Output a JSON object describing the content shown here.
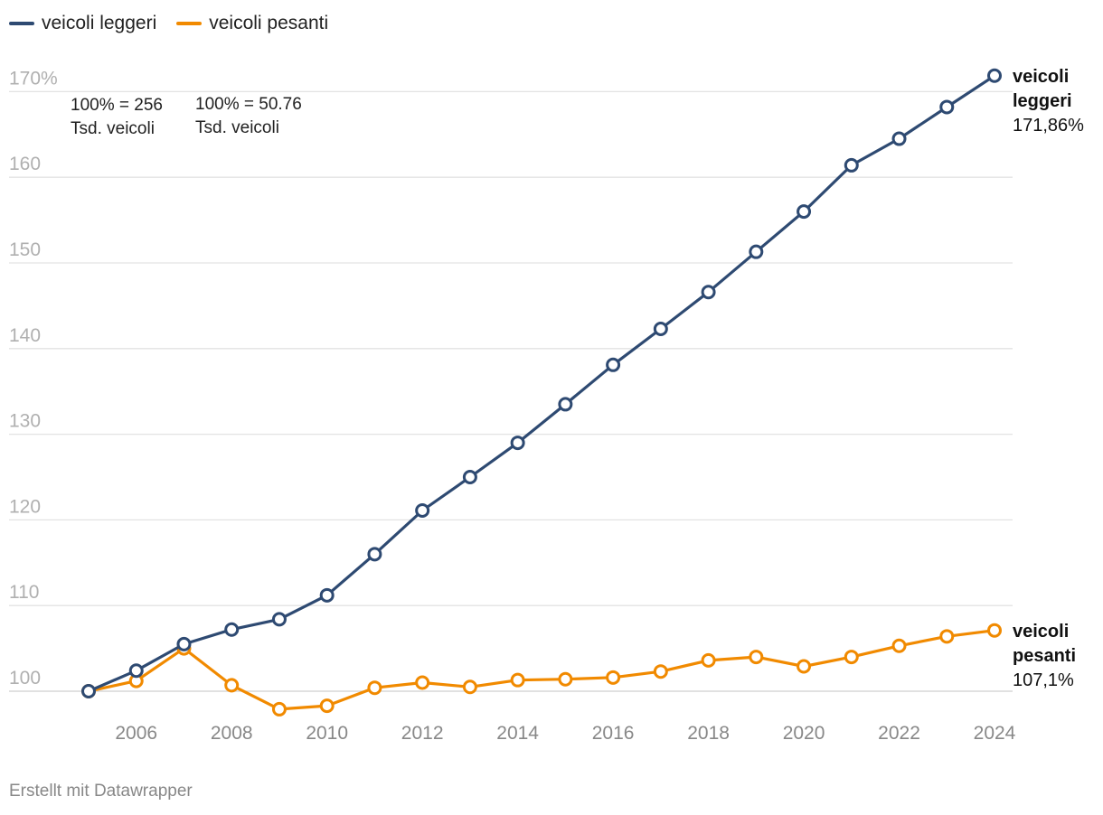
{
  "chart_data": {
    "type": "line",
    "x": [
      2005,
      2006,
      2007,
      2008,
      2009,
      2010,
      2011,
      2012,
      2013,
      2014,
      2015,
      2016,
      2017,
      2018,
      2019,
      2020,
      2021,
      2022,
      2023,
      2024
    ],
    "x_ticks": [
      2006,
      2008,
      2010,
      2012,
      2014,
      2016,
      2018,
      2020,
      2022,
      2024
    ],
    "y_ticks": [
      {
        "value": 100,
        "label": "100"
      },
      {
        "value": 110,
        "label": "110"
      },
      {
        "value": 120,
        "label": "120"
      },
      {
        "value": 130,
        "label": "130"
      },
      {
        "value": 140,
        "label": "140"
      },
      {
        "value": 150,
        "label": "150"
      },
      {
        "value": 160,
        "label": "160"
      },
      {
        "value": 170,
        "label": "170%"
      }
    ],
    "ylim": [
      98,
      172
    ],
    "grid": true,
    "series": [
      {
        "name": "veicoli leggeri",
        "color": "#2e4a72",
        "values": [
          100,
          102.4,
          105.5,
          107.2,
          108.4,
          111.2,
          116.0,
          121.1,
          125.0,
          129.0,
          133.5,
          138.1,
          142.3,
          146.6,
          151.3,
          156.0,
          161.4,
          164.5,
          168.2,
          171.86
        ],
        "end_label_line1": "veicoli",
        "end_label_line2": "leggeri",
        "end_value_label": "171,86%"
      },
      {
        "name": "veicoli pesanti",
        "color": "#f18a00",
        "values": [
          100,
          101.2,
          105.0,
          100.7,
          97.9,
          98.3,
          100.4,
          101.0,
          100.5,
          101.3,
          101.4,
          101.6,
          102.3,
          103.6,
          104.0,
          102.9,
          104.0,
          105.3,
          106.4,
          107.1
        ],
        "end_label_line1": "veicoli",
        "end_label_line2": "pesanti",
        "end_value_label": "107,1%"
      }
    ],
    "annotations": [
      {
        "line1": "100% = 256",
        "line2": "Tsd. veicoli"
      },
      {
        "line1": "100% = 50.76",
        "line2": "Tsd. veicoli"
      }
    ]
  },
  "footer": {
    "credit": "Erstellt mit Datawrapper"
  }
}
